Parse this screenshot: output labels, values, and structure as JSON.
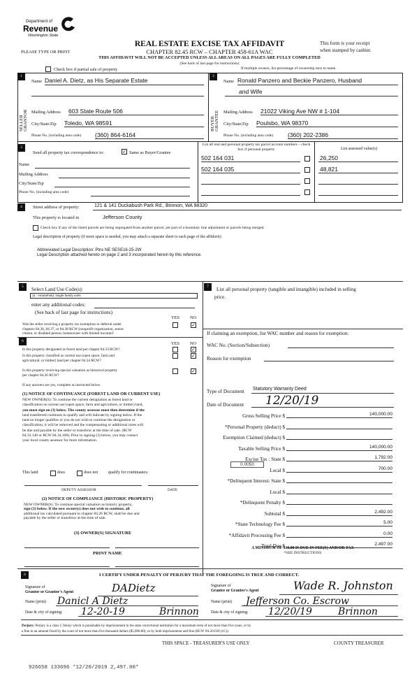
{
  "header": {
    "logo_line1": "Department of",
    "logo_line2": "Revenue",
    "logo_line3": "Washington State",
    "title": "REAL ESTATE EXCISE TAX AFFIDAVIT",
    "subtitle": "CHAPTER 82.45 RCW – CHAPTER 458-61A WAC",
    "please": "PLEASE TYPE OR PRINT",
    "receipt1": "This form is your receipt",
    "receipt2": "when stamped by cashier.",
    "warning": "THIS AFFIDAVIT WILL NOT BE ACCEPTED UNLESS ALL AREAS ON ALL PAGES ARE FULLY COMPLETED",
    "instructions": "(See back of last page for instructions)",
    "partial_sale": "Check box if partial sale of property",
    "multiple_owners": "If multiple owners, list percentage of ownership next to name."
  },
  "seller": {
    "num": "1",
    "side": "SELLER GRANTOR",
    "name_label": "Name",
    "name": "Daniel A. Dietz, as His Separate Estate",
    "addr_label": "Mailing Address",
    "addr": "603 State Route 506",
    "city_label": "City/State/Zip",
    "city": "Toledo, WA 98591",
    "phone_label": "Phone No. (including area code)",
    "phone": "(360) 864-6164"
  },
  "buyer": {
    "num": "2",
    "side": "BUYER GRANTEE",
    "name_label": "Name",
    "name1": "Ronald Panzero and Beckie Panzero, Husband",
    "name2": "and Wife",
    "addr_label": "Mailing Address",
    "addr": "21022 Viking Ave NW # 1-104",
    "city_label": "City/State/Zip",
    "city": "Poulsbo, WA 98370",
    "phone_label": "Phone No. (including area code)",
    "phone": "(360) 202-2386"
  },
  "section3": {
    "num": "3",
    "send_label": "Send all property tax correspondence to:",
    "same_label": "Same as Buyer/Grantee",
    "same_checked": true,
    "name_label": "Name",
    "addr_label": "Mailing Address",
    "city_label": "City/State/Zip",
    "phone_label": "Phone No. (including area code)",
    "parcel_header": "List all real and personal property tax parcel account numbers – check box if personal property",
    "assessed_header": "List assessed value(s)",
    "parcels": [
      {
        "number": "502 164 031",
        "value": "26,250"
      },
      {
        "number": "502 164 035",
        "value": "48,821"
      },
      {
        "number": "",
        "value": ""
      },
      {
        "number": "",
        "value": ""
      }
    ]
  },
  "section4": {
    "num": "4",
    "street_label": "Street address of property:",
    "street": "121 & 141 Duckabush Park Rd., Brinnon, WA 98320",
    "located_label": "This property is located in",
    "county": "Jefferson County",
    "segregated_label": "Check box if any of the listed parcels are being segregated from another parcel, are part of a boundary line adjustment or parcels being merged.",
    "legal_label": "Legal description of property (if more space is needed, you may attach a separate sheet to each page of the affidavit)",
    "legal1": "Abbreviated Legal Description: Ptns NE SESE16-25-2W",
    "legal2": "Legal Description attached hereto on page 2 and 3 incorporated herein by this reference."
  },
  "section5": {
    "num": "5",
    "label": "Select Land Use Code(s):",
    "code": "11 - Household, single family units",
    "additional": "enter any additional codes:",
    "see_back": "(See back of last page for instructions)",
    "yes": "YES",
    "no": "NO",
    "q1": [
      "Was the seller receiving a property tax exemption or deferral under",
      "chapters 84.36, 84.37, or 84.38 RCW (nonprofit organization, senior",
      "citizen, or disabled person, homeowner with limited income)?"
    ],
    "q1_answer": "NO"
  },
  "section6": {
    "num": "6",
    "yes": "YES",
    "no": "NO",
    "questions": [
      {
        "text": [
          "Is this property designated as forest land per chapter 84.33 RCW?"
        ],
        "answer": "NO"
      },
      {
        "text": [
          "Is this property classified as current use (open space, farm and",
          "agricultural, or timber) land per chapter 84.34 RCW?"
        ],
        "answer": "NO"
      },
      {
        "text": [
          "Is this property receiving special valuation as historical property",
          "per chapter 84.26 RCW?"
        ],
        "answer": "NO"
      }
    ],
    "if_yes": "If any answers are yes, complete as instructed below.",
    "notice1_title": "(1) NOTICE OF CONTINUANCE (FOREST LAND OR CURRENT USE)",
    "notice1": [
      "NEW OWNER(S): To continue the current designation as forest land or",
      "classification as current use (open space, farm and agriculture, or timber) land,",
      "you must sign on (3) below. The county assessor must then determine if the",
      "land transferred continues to qualify and will indicate by signing below. If the",
      "land no longer qualifies or you do not wish to continue the designation or",
      "classification, it will be removed and the compensating or additional taxes will",
      "be due and payable by the seller or transferor at the time of sale. (RCW",
      "84.33.140 or RCW 84.34.108). Prior to signing (3) below, you may contact",
      "your local county assessor for more information."
    ],
    "this_land": "This land",
    "does": "does",
    "does_not": "does not",
    "qualify": "qualify for continuance.",
    "deputy": "DEPUTY ASSESSOR",
    "date": "DATE",
    "notice2_title": "(2) NOTICE OF COMPLIANCE (HISTORIC PROPERTY)",
    "notice2": [
      "NEW OWNER(S): To continue special valuation as historic property,",
      "sign (3) below. If the new owner(s) does not wish to continue, all",
      "additional tax calculated pursuant to chapter 84.26 RCW, shall be due and",
      "payable by the seller or transferor at the time of sale."
    ],
    "owner_sig": "(3) OWNER(S) SIGNATURE",
    "print_name": "PRINT NAME"
  },
  "section7": {
    "num": "7",
    "label1": "List all personal property (tangible and intangible) included in selling",
    "label2": "price.",
    "exemption": "If claiming an exemption, list WAC number and reason for exemption:",
    "wac_label": "WAC No. (Section/Subsection)",
    "reason_label": "Reason for exemption",
    "doc_type_label": "Type of Document",
    "doc_type": "Statutory Warranty Deed",
    "doc_date_label": "Date of Document",
    "doc_date": "12/20/19",
    "local_rate": "0.0050",
    "amounts": [
      {
        "label": "Gross Selling Price $",
        "value": "140,000.00"
      },
      {
        "label": "*Personal Property (deduct) $",
        "value": ""
      },
      {
        "label": "Exemption Claimed (deduct) $",
        "value": ""
      },
      {
        "label": "Taxable Selling Price $",
        "value": "140,000.00"
      },
      {
        "label": "Excise Tax : State $",
        "value": "1,792.00"
      },
      {
        "label": "Local $",
        "value": "700.00"
      },
      {
        "label": "*Delinquent Interest: State $",
        "value": ""
      },
      {
        "label": "Local $",
        "value": ""
      },
      {
        "label": "*Delinquent Penalty $",
        "value": ""
      },
      {
        "label": "Subtotal $",
        "value": "2,492.00"
      },
      {
        "label": "*State Technology Fee $",
        "value": "5.00"
      },
      {
        "label": "*Affidavit Processing Fee $",
        "value": "0.00"
      },
      {
        "label": "Total Due $",
        "value": "2,497.00"
      }
    ],
    "minimum": "A MINIMUM OF $10.00 IS DUE IN FEE(S) AND/OR TAX",
    "see_instr": "*SEE INSTRUCTIONS"
  },
  "section8": {
    "num": "8",
    "certify": "I CERTIFY UNDER PENALTY OF PERJURY THAT THE FOREGOING IS TRUE AND CORRECT.",
    "sig_grantor_label1": "Signature of",
    "sig_grantor_label2": "Grantor or Grantor's Agent",
    "sig_grantor": "DADietz",
    "name_print_label": "Name (print)",
    "grantor_name": "Danicl A Dietz",
    "date_city_label": "Date & city of signing:",
    "grantor_date": "12-20-19",
    "grantor_city": "Brinnon",
    "sig_grantee_label1": "Signature of",
    "sig_grantee_label2": "Grantee or Grantee's Agent",
    "sig_grantee": "Wade R. Johnston",
    "grantee_name": "Jefferson Co. Escrow",
    "grantee_date": "12/20/19",
    "grantee_city": "Brinnon",
    "perjury_label": "Perjury:",
    "perjury1": "Perjury is a class C felony which is punishable by imprisonment in the state correctional institution for a maximum term of not more than five years, or by",
    "perjury2": "a fine in an amount fixed by the court of not more than five thousand dollars ($5,000.00), or by both imprisonment and fine (RCW 9A.20.020 (1C))."
  },
  "footer": {
    "treasurer_use": "THIS SPACE - TREASURER'S USE ONLY",
    "county_treasurer": "COUNTY TREASURER",
    "receipt_stamp": "926658 133696 *12/20/2019 2,497.00*"
  }
}
